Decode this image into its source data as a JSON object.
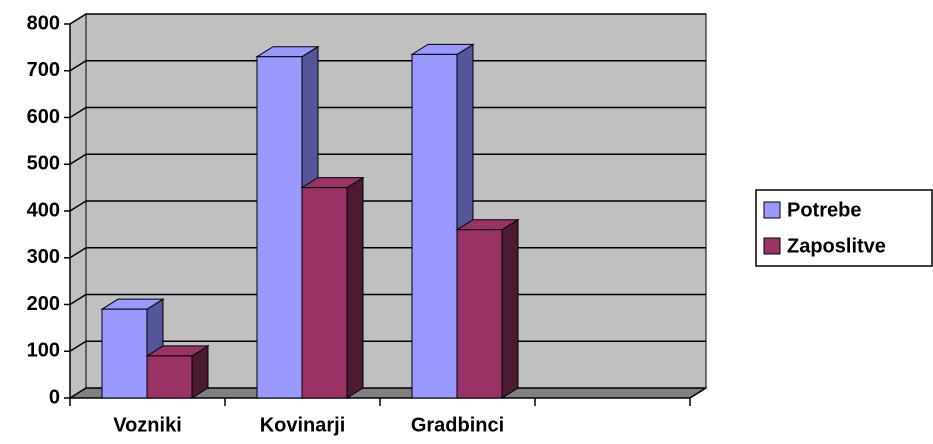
{
  "chart_data": {
    "type": "bar3d",
    "categories": [
      "Vozniki",
      "Kovinarji",
      "Gradbinci",
      null
    ],
    "series": [
      {
        "name": "Potrebe",
        "color": "#9999ff",
        "side": "#555599",
        "values": [
          190,
          730,
          735,
          null
        ]
      },
      {
        "name": "Zaposlitve",
        "color": "#993366",
        "side": "#4d1a33",
        "values": [
          90,
          450,
          360,
          null
        ]
      }
    ],
    "ylim": [
      0,
      800
    ],
    "yticks": [
      0,
      100,
      200,
      300,
      400,
      500,
      600,
      700,
      800
    ],
    "grid": true,
    "legend": "right"
  }
}
